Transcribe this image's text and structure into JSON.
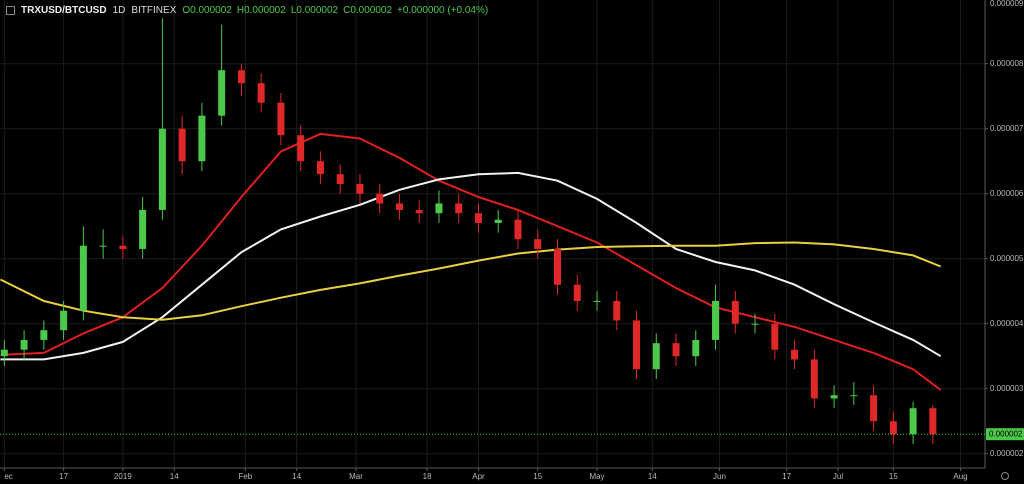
{
  "chart_data": {
    "type": "candlestick",
    "title": "TRXUSD/BTCUSD",
    "interval": "1D",
    "exchange": "BITFINEX",
    "header": [
      "O0.000002",
      "H0.000002",
      "L0.000002",
      "C0.000002",
      "+0.000000 (+0.04%)"
    ],
    "up_color": "#4cc94a",
    "down_color": "#e02828",
    "grid": true,
    "xlim": [
      -31.1,
      218.2
    ],
    "xticks": [
      {
        "value": -30,
        "label": "ec"
      },
      {
        "value": -15,
        "label": "17"
      },
      {
        "value": 0,
        "label": "2019"
      },
      {
        "value": 13,
        "label": "14"
      },
      {
        "value": 31,
        "label": "Feb"
      },
      {
        "value": 44,
        "label": "14"
      },
      {
        "value": 59,
        "label": "Mar"
      },
      {
        "value": 77,
        "label": "18"
      },
      {
        "value": 90,
        "label": "Apr"
      },
      {
        "value": 105,
        "label": "15"
      },
      {
        "value": 120,
        "label": "May"
      },
      {
        "value": 134,
        "label": "14"
      },
      {
        "value": 151,
        "label": "Jun"
      },
      {
        "value": 168,
        "label": "17"
      },
      {
        "value": 181,
        "label": "Jul"
      },
      {
        "value": 195,
        "label": "15"
      },
      {
        "value": 212,
        "label": "Aug"
      }
    ],
    "ylim": [
      1.78e-06,
      8.98e-06
    ],
    "yticks": [
      {
        "value": 2e-06,
        "label": "0.000002"
      },
      {
        "value": 3e-06,
        "label": "0.000003"
      },
      {
        "value": 4e-06,
        "label": "0.000004"
      },
      {
        "value": 5e-06,
        "label": "0.000005"
      },
      {
        "value": 6e-06,
        "label": "0.000006"
      },
      {
        "value": 7e-06,
        "label": "0.000007"
      },
      {
        "value": 8e-06,
        "label": "0.000008"
      },
      {
        "value": 9e-06,
        "label": "0.000009"
      }
    ],
    "last_price": {
      "value": 2.3e-06,
      "label": "0.000002"
    },
    "x": [
      -30,
      -25,
      -20,
      -15,
      -10,
      -5,
      0,
      5,
      10,
      15,
      20,
      25,
      30,
      35,
      40,
      45,
      50,
      55,
      60,
      65,
      70,
      75,
      80,
      85,
      90,
      95,
      100,
      105,
      110,
      115,
      120,
      125,
      130,
      135,
      140,
      145,
      150,
      155,
      160,
      165,
      170,
      175,
      180,
      185,
      190,
      195,
      200,
      205
    ],
    "open": [
      3.5e-06,
      3.6e-06,
      3.75e-06,
      3.9e-06,
      4.2e-06,
      5.2e-06,
      5.2e-06,
      5.15e-06,
      5.75e-06,
      7e-06,
      6.5e-06,
      7.2e-06,
      7.9e-06,
      7.7e-06,
      7.4e-06,
      6.9e-06,
      6.5e-06,
      6.3e-06,
      6.15e-06,
      6e-06,
      5.85e-06,
      5.75e-06,
      5.7e-06,
      5.85e-06,
      5.7e-06,
      5.55e-06,
      5.6e-06,
      5.3e-06,
      5.15e-06,
      4.6e-06,
      4.35e-06,
      4.35e-06,
      4.05e-06,
      3.3e-06,
      3.7e-06,
      3.5e-06,
      3.75e-06,
      4.35e-06,
      4e-06,
      4e-06,
      3.6e-06,
      3.45e-06,
      2.85e-06,
      2.9e-06,
      2.9e-06,
      2.5e-06,
      2.3e-06,
      2.7e-06
    ],
    "high": [
      3.75e-06,
      3.9e-06,
      4.05e-06,
      4.35e-06,
      5.5e-06,
      5.45e-06,
      5.35e-06,
      5.95e-06,
      8.7e-06,
      7.2e-06,
      7.4e-06,
      8.6e-06,
      8e-06,
      7.85e-06,
      7.55e-06,
      7.05e-06,
      6.65e-06,
      6.45e-06,
      6.3e-06,
      6.15e-06,
      6e-06,
      5.9e-06,
      6.05e-06,
      6e-06,
      5.85e-06,
      5.75e-06,
      5.75e-06,
      5.45e-06,
      5.3e-06,
      4.75e-06,
      4.5e-06,
      4.5e-06,
      4.2e-06,
      3.85e-06,
      3.85e-06,
      3.9e-06,
      4.6e-06,
      4.5e-06,
      4.15e-06,
      4.15e-06,
      3.75e-06,
      3.6e-06,
      3.05e-06,
      3.1e-06,
      3.05e-06,
      2.65e-06,
      2.8e-06,
      2.75e-06
    ],
    "low": [
      3.35e-06,
      3.45e-06,
      3.6e-06,
      3.75e-06,
      4.05e-06,
      5e-06,
      5e-06,
      5e-06,
      5.6e-06,
      6.3e-06,
      6.35e-06,
      7.05e-06,
      7.5e-06,
      7.25e-06,
      6.75e-06,
      6.35e-06,
      6.15e-06,
      6e-06,
      5.85e-06,
      5.7e-06,
      5.6e-06,
      5.55e-06,
      5.55e-06,
      5.55e-06,
      5.4e-06,
      5.4e-06,
      5.15e-06,
      5e-06,
      4.45e-06,
      4.2e-06,
      4.2e-06,
      3.9e-06,
      3.15e-06,
      3.15e-06,
      3.35e-06,
      3.35e-06,
      3.6e-06,
      3.85e-06,
      3.85e-06,
      3.45e-06,
      3.3e-06,
      2.7e-06,
      2.7e-06,
      2.75e-06,
      2.35e-06,
      2.15e-06,
      2.15e-06,
      2.15e-06
    ],
    "close": [
      3.6e-06,
      3.75e-06,
      3.9e-06,
      4.2e-06,
      5.2e-06,
      5.2e-06,
      5.15e-06,
      5.75e-06,
      7e-06,
      6.5e-06,
      7.2e-06,
      7.9e-06,
      7.7e-06,
      7.4e-06,
      6.9e-06,
      6.5e-06,
      6.3e-06,
      6.15e-06,
      6e-06,
      5.85e-06,
      5.75e-06,
      5.7e-06,
      5.85e-06,
      5.7e-06,
      5.55e-06,
      5.6e-06,
      5.3e-06,
      5.15e-06,
      4.6e-06,
      4.35e-06,
      4.35e-06,
      4.05e-06,
      3.3e-06,
      3.7e-06,
      3.5e-06,
      3.75e-06,
      4.35e-06,
      4e-06,
      4e-06,
      3.6e-06,
      3.45e-06,
      2.85e-06,
      2.9e-06,
      2.9e-06,
      2.5e-06,
      2.3e-06,
      2.7e-06,
      2.3e-06
    ],
    "lines": [
      {
        "color": "#e02020",
        "x": [
          -31,
          -20,
          -10,
          0,
          10,
          20,
          30,
          40,
          50,
          60,
          70,
          80,
          90,
          100,
          110,
          120,
          130,
          140,
          150,
          160,
          170,
          180,
          190,
          200,
          207
        ],
        "values": [
          3.52e-06,
          3.55e-06,
          3.85e-06,
          4.1e-06,
          4.55e-06,
          5.2e-06,
          5.95e-06,
          6.65e-06,
          6.92e-06,
          6.85e-06,
          6.55e-06,
          6.2e-06,
          5.95e-06,
          5.75e-06,
          5.5e-06,
          5.25e-06,
          4.9e-06,
          4.55e-06,
          4.25e-06,
          4.1e-06,
          3.95e-06,
          3.75e-06,
          3.55e-06,
          3.3e-06,
          2.98e-06
        ]
      },
      {
        "color": "#f2f2f2",
        "x": [
          -31,
          -20,
          -10,
          0,
          10,
          20,
          30,
          40,
          50,
          60,
          70,
          80,
          90,
          100,
          110,
          120,
          130,
          140,
          150,
          160,
          170,
          180,
          190,
          200,
          207
        ],
        "values": [
          3.45e-06,
          3.45e-06,
          3.55e-06,
          3.72e-06,
          4.1e-06,
          4.6e-06,
          5.1e-06,
          5.45e-06,
          5.65e-06,
          5.83e-06,
          6.06e-06,
          6.22e-06,
          6.3e-06,
          6.32e-06,
          6.2e-06,
          5.92e-06,
          5.55e-06,
          5.15e-06,
          4.95e-06,
          4.82e-06,
          4.6e-06,
          4.3e-06,
          4.02e-06,
          3.75e-06,
          3.5e-06
        ]
      },
      {
        "color": "#e8d040",
        "x": [
          -31,
          -20,
          -10,
          0,
          10,
          20,
          30,
          40,
          50,
          60,
          70,
          80,
          90,
          100,
          110,
          120,
          130,
          140,
          150,
          160,
          170,
          180,
          190,
          200,
          207
        ],
        "values": [
          4.68e-06,
          4.35e-06,
          4.2e-06,
          4.1e-06,
          4.06e-06,
          4.13e-06,
          4.27e-06,
          4.4e-06,
          4.52e-06,
          4.62e-06,
          4.74e-06,
          4.85e-06,
          4.97e-06,
          5.08e-06,
          5.14e-06,
          5.18e-06,
          5.19e-06,
          5.2e-06,
          5.2e-06,
          5.24e-06,
          5.25e-06,
          5.22e-06,
          5.15e-06,
          5.05e-06,
          4.88e-06
        ]
      }
    ]
  }
}
